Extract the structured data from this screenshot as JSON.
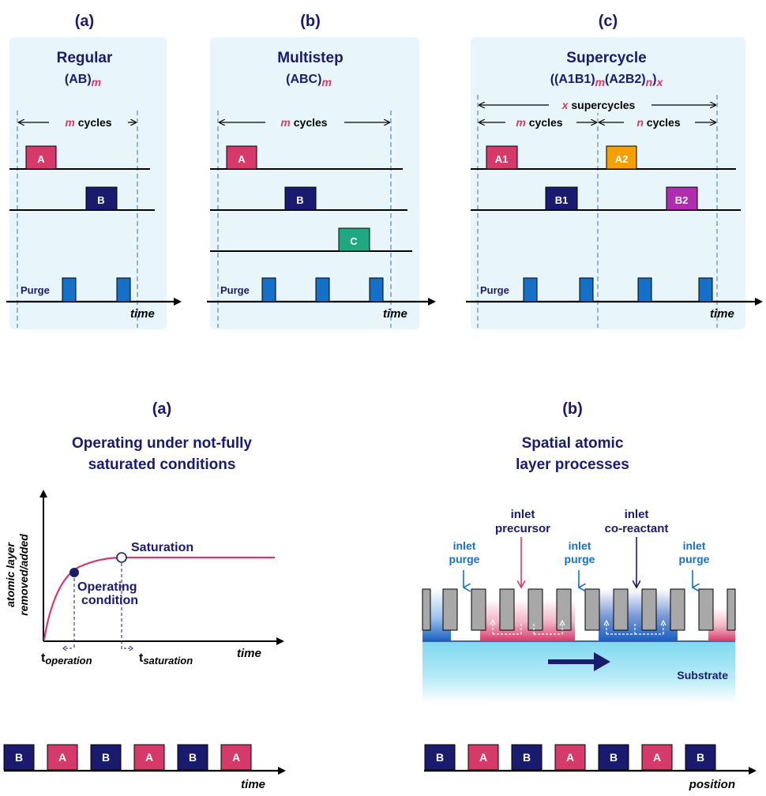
{
  "colors": {
    "navy": "#1a1a6e",
    "pink": "#d63a6a",
    "blue": "#1570c8",
    "orange": "#f5a000",
    "purple": "#b02db0",
    "green": "#1fa882",
    "panel": "#e8f6fc",
    "gray": "#a8a8a8"
  },
  "top": {
    "a": {
      "tag": "(a)",
      "title": "Regular",
      "formula_base": "(AB)",
      "formula_sub": "m",
      "span_var": "m",
      "span_text": " cycles",
      "pulses": [
        "A",
        "B"
      ],
      "purge": "Purge",
      "time": "time"
    },
    "b": {
      "tag": "(b)",
      "title": "Multistep",
      "formula_base": "(ABC)",
      "formula_sub": "m",
      "span_var": "m",
      "span_text": " cycles",
      "pulses": [
        "A",
        "B",
        "C"
      ],
      "purge": "Purge",
      "time": "time"
    },
    "c": {
      "tag": "(c)",
      "title": "Supercycle",
      "formula": {
        "p1": "((A1B1)",
        "s1": "m",
        "p2": "(A2B2)",
        "s2": "n",
        "p3": ")",
        "s3": "x"
      },
      "super_var": "x",
      "super_text": " supercycles",
      "m_var": "m",
      "m_text": " cycles",
      "n_var": "n",
      "n_text": " cycles",
      "pulses": [
        "A1",
        "B1",
        "A2",
        "B2"
      ],
      "purge": "Purge",
      "time": "time"
    }
  },
  "bottom_left": {
    "tag": "(a)",
    "title_line1": "Operating under not-fully",
    "title_line2": "saturated conditions",
    "ylabel_line1": "atomic layer",
    "ylabel_line2": "removed/added",
    "saturation": "Saturation",
    "operating_line1": "Operating",
    "operating_line2": "condition",
    "t_op_main": "t",
    "t_op_sub": "operation",
    "t_sat_main": "t",
    "t_sat_sub": "saturation",
    "time": "time",
    "sequence": [
      "B",
      "A",
      "B",
      "A",
      "B",
      "A"
    ],
    "axis_label": "time"
  },
  "bottom_right": {
    "tag": "(b)",
    "title_line1": "Spatial atomic",
    "title_line2": "layer processes",
    "inlet_precursor_1": "inlet",
    "inlet_precursor_2": "precursor",
    "inlet_coreactant_1": "inlet",
    "inlet_coreactant_2": "co-reactant",
    "inlet_purge_1": "inlet",
    "inlet_purge_2": "purge",
    "substrate": "Substrate",
    "sequence": [
      "B",
      "A",
      "B",
      "A",
      "B",
      "A",
      "B"
    ],
    "axis_label": "position"
  }
}
